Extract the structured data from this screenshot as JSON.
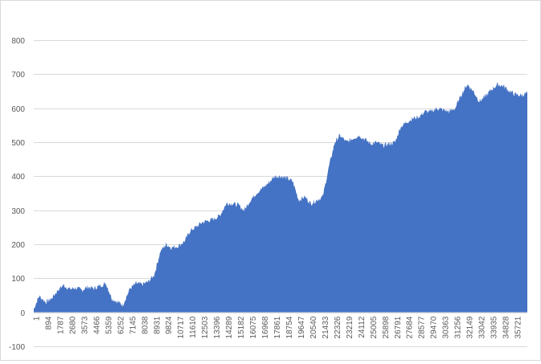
{
  "chart_data": {
    "type": "area",
    "title": "",
    "xlabel": "",
    "ylabel": "",
    "ylim": [
      -100,
      800
    ],
    "y_ticks": [
      -100,
      0,
      100,
      200,
      300,
      400,
      500,
      600,
      700,
      800
    ],
    "x_tick_labels": [
      "1",
      "894",
      "1787",
      "2680",
      "3573",
      "4466",
      "5359",
      "6252",
      "7145",
      "8038",
      "8931",
      "9824",
      "10717",
      "11610",
      "12503",
      "13396",
      "14289",
      "15182",
      "16075",
      "16968",
      "17861",
      "18754",
      "19647",
      "20540",
      "21433",
      "22326",
      "23219",
      "24112",
      "25005",
      "25898",
      "26791",
      "27684",
      "28577",
      "29470",
      "30363",
      "31256",
      "32149",
      "33042",
      "33935",
      "34828",
      "35721"
    ],
    "x_range": [
      1,
      36600
    ],
    "grid": "horizontal",
    "legend": "none",
    "series_color": "#4472c4",
    "series": [
      {
        "x": [
          1,
          400,
          894,
          1300,
          1787,
          2200,
          2680,
          3100,
          3573,
          4000,
          4466,
          4900,
          5359,
          5800,
          6252,
          6600,
          7145,
          7600,
          8038,
          8500,
          8931,
          9400,
          9824,
          10200,
          10717,
          11200,
          11610,
          12000,
          12503,
          13000,
          13396,
          13800,
          14289,
          14700,
          15182,
          15600,
          16075,
          16500,
          16968,
          17400,
          17861,
          18300,
          18754,
          19200,
          19647,
          20100,
          20540,
          21000,
          21433,
          21900,
          22326,
          22700,
          23219,
          23600,
          24112,
          24500,
          25005,
          25400,
          25898,
          26300,
          26791,
          27200,
          27684,
          28100,
          28577,
          29000,
          29470,
          29900,
          30363,
          30800,
          31256,
          31700,
          32149,
          32600,
          33042,
          33500,
          33935,
          34400,
          34828,
          35300,
          35721,
          36200,
          36600
        ],
        "values": [
          10,
          48,
          30,
          40,
          65,
          80,
          68,
          72,
          65,
          75,
          70,
          78,
          85,
          40,
          30,
          22,
          70,
          85,
          82,
          90,
          110,
          180,
          200,
          190,
          195,
          210,
          240,
          250,
          265,
          270,
          275,
          285,
          320,
          320,
          315,
          300,
          330,
          350,
          365,
          380,
          400,
          400,
          395,
          385,
          330,
          340,
          320,
          330,
          340,
          430,
          500,
          520,
          500,
          510,
          520,
          510,
          495,
          500,
          490,
          495,
          500,
          545,
          560,
          570,
          575,
          590,
          590,
          600,
          595,
          590,
          600,
          640,
          670,
          650,
          620,
          635,
          655,
          670,
          665,
          650,
          640,
          638,
          645
        ]
      }
    ]
  }
}
